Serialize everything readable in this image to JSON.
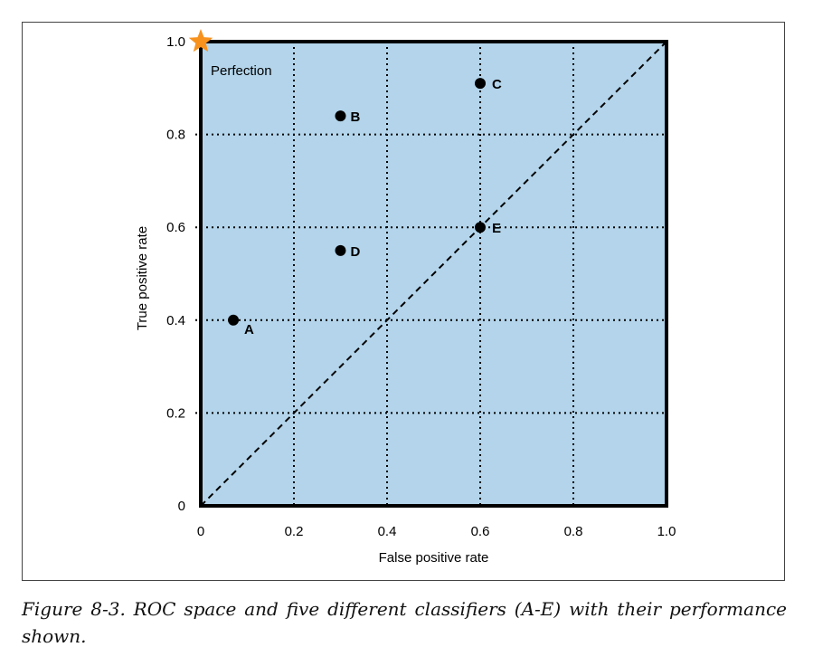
{
  "chart_data": {
    "type": "scatter",
    "xlabel": "False positive rate",
    "ylabel": "True positive rate",
    "xlim": [
      0,
      1.0
    ],
    "ylim": [
      0,
      1.0
    ],
    "x_ticks": [
      "0",
      "0.2",
      "0.4",
      "0.6",
      "0.8",
      "1.0"
    ],
    "y_ticks": [
      "0",
      "0.2",
      "0.4",
      "0.6",
      "0.8",
      "1.0"
    ],
    "grid": true,
    "background_color": "#b3d4ea",
    "diagonal": {
      "from": [
        0,
        0
      ],
      "to": [
        1.0,
        1.0
      ],
      "style": "dashed"
    },
    "perfection": {
      "x": 0,
      "y": 1.0,
      "label": "Perfection",
      "color": "#f7921e"
    },
    "points": [
      {
        "label": "A",
        "x": 0.07,
        "y": 0.4
      },
      {
        "label": "B",
        "x": 0.3,
        "y": 0.84
      },
      {
        "label": "C",
        "x": 0.6,
        "y": 0.91
      },
      {
        "label": "D",
        "x": 0.3,
        "y": 0.55
      },
      {
        "label": "E",
        "x": 0.6,
        "y": 0.6
      }
    ]
  },
  "caption": "Figure 8-3. ROC space and five different classifiers (A-E) with their performance shown."
}
